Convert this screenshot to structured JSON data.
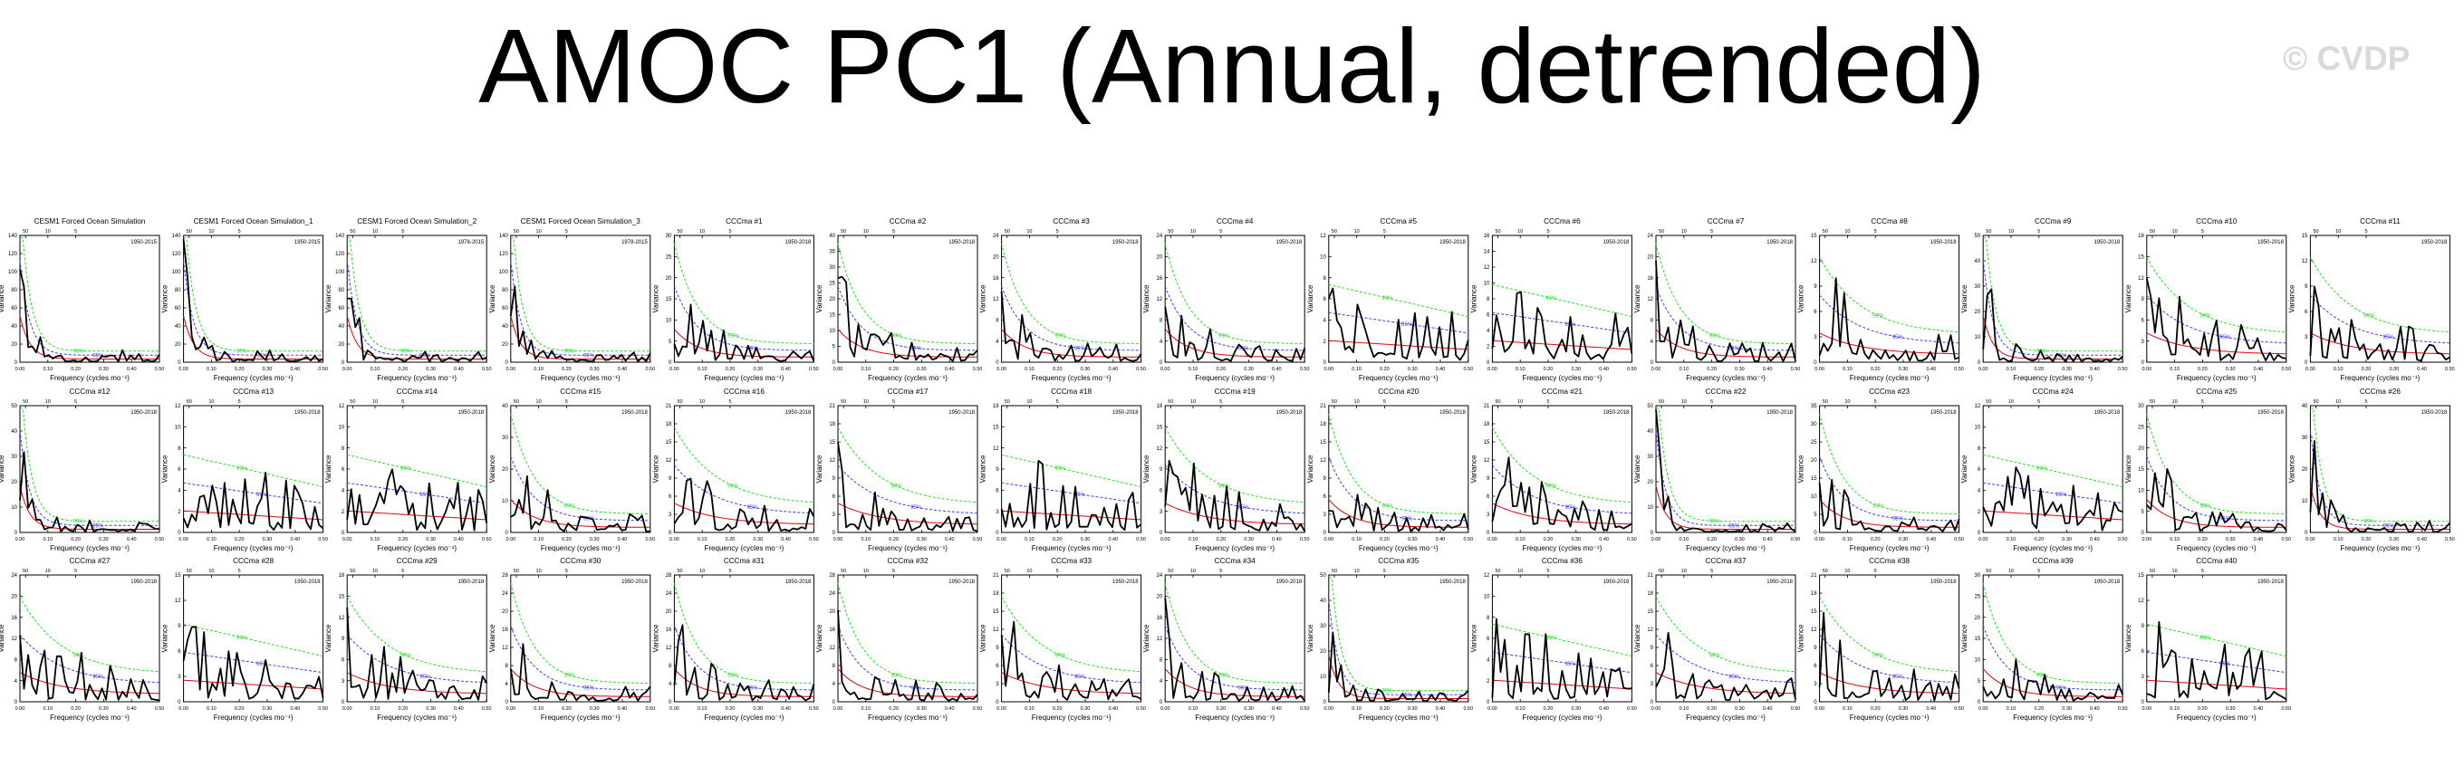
{
  "figure": {
    "title": "AMOC PC1 (Annual, detrended)",
    "watermark": "© CVDP",
    "colors": {
      "spectrum": "#000000",
      "red_noise": "#e8000b",
      "sig_95": "#3b3bff",
      "sig_99": "#22e022"
    }
  },
  "chart_data": {
    "type": "line",
    "description_series": [
      "power spectrum",
      "red noise",
      "95%",
      "99%"
    ],
    "xlabel": "Frequency (cycles mo⁻¹)",
    "ylabel": "Variance",
    "xlim": [
      0.0,
      0.5
    ],
    "x_ticks": [
      "0.00",
      "0.10",
      "0.20",
      "0.30",
      "0.40",
      "0.50"
    ],
    "top_ticks": [
      "50",
      "10",
      "5"
    ],
    "sig_labels": {
      "s95": "95%",
      "s99": "99%"
    },
    "panels": [
      {
        "title": "CESM1 Forced Ocean Simulation",
        "years": "1950-2015",
        "ymax": 140,
        "yticks": [
          "0",
          "20",
          "40",
          "60",
          "80",
          "100",
          "120",
          "140"
        ],
        "shape": "steep"
      },
      {
        "title": "CESM1 Forced Ocean Simulation_1",
        "years": "1950-2015",
        "ymax": 140,
        "yticks": [
          "0",
          "20",
          "40",
          "60",
          "80",
          "100",
          "120",
          "140"
        ],
        "shape": "steep"
      },
      {
        "title": "CESM1 Forced Ocean Simulation_2",
        "years": "1978-2015",
        "ymax": 140,
        "yticks": [
          "0",
          "20",
          "40",
          "60",
          "80",
          "100",
          "120",
          "140"
        ],
        "shape": "steep"
      },
      {
        "title": "CESM1 Forced Ocean Simulation_3",
        "years": "1978-2015",
        "ymax": 140,
        "yticks": [
          "0",
          "20",
          "40",
          "60",
          "80",
          "100",
          "120",
          "140"
        ],
        "shape": "steep"
      },
      {
        "title": "CCCma #1",
        "years": "1950-2018",
        "ymax": 30,
        "yticks": [
          "0",
          "5",
          "10",
          "15",
          "20",
          "25",
          "30"
        ],
        "shape": "red"
      },
      {
        "title": "CCCma #2",
        "years": "1950-2018",
        "ymax": 40,
        "yticks": [
          "0",
          "5",
          "10",
          "15",
          "20",
          "25",
          "30",
          "35",
          "40"
        ],
        "shape": "red"
      },
      {
        "title": "CCCma #3",
        "years": "1950-2018",
        "ymax": 24,
        "yticks": [
          "0",
          "4",
          "8",
          "12",
          "16",
          "20",
          "24"
        ],
        "shape": "red"
      },
      {
        "title": "CCCma #4",
        "years": "1950-2018",
        "ymax": 24,
        "yticks": [
          "0",
          "4",
          "8",
          "12",
          "16",
          "20",
          "24"
        ],
        "shape": "red"
      },
      {
        "title": "CCCma #5",
        "years": "1950-2018",
        "ymax": 12,
        "yticks": [
          "0",
          "2",
          "4",
          "6",
          "8",
          "10",
          "12"
        ],
        "shape": "white"
      },
      {
        "title": "CCCma #6",
        "years": "1950-2018",
        "ymax": 16,
        "yticks": [
          "0",
          "2",
          "4",
          "6",
          "8",
          "10",
          "12",
          "14",
          "16"
        ],
        "shape": "white"
      },
      {
        "title": "CCCma #7",
        "years": "1950-2018",
        "ymax": 24,
        "yticks": [
          "0",
          "4",
          "8",
          "12",
          "16",
          "20",
          "24"
        ],
        "shape": "red"
      },
      {
        "title": "CCCma #8",
        "years": "1950-2018",
        "ymax": 15,
        "yticks": [
          "0",
          "3",
          "6",
          "9",
          "12",
          "15"
        ],
        "shape": "mid"
      },
      {
        "title": "CCCma #9",
        "years": "1950-2018",
        "ymax": 50,
        "yticks": [
          "0",
          "10",
          "20",
          "30",
          "40",
          "50"
        ],
        "shape": "steep"
      },
      {
        "title": "CCCma #10",
        "years": "1950-2018",
        "ymax": 18,
        "yticks": [
          "0",
          "3",
          "6",
          "9",
          "12",
          "15",
          "18"
        ],
        "shape": "mid"
      },
      {
        "title": "CCCma #11",
        "years": "1950-2018",
        "ymax": 15,
        "yticks": [
          "0",
          "3",
          "6",
          "9",
          "12",
          "15"
        ],
        "shape": "mid"
      },
      {
        "title": "CCCma #12",
        "years": "1950-2018",
        "ymax": 50,
        "yticks": [
          "0",
          "10",
          "20",
          "30",
          "40",
          "50"
        ],
        "shape": "steep"
      },
      {
        "title": "CCCma #13",
        "years": "1950-2018",
        "ymax": 12,
        "yticks": [
          "0",
          "2",
          "4",
          "6",
          "8",
          "10",
          "12"
        ],
        "shape": "white"
      },
      {
        "title": "CCCma #14",
        "years": "1950-2018",
        "ymax": 12,
        "yticks": [
          "0",
          "2",
          "4",
          "6",
          "8",
          "10",
          "12"
        ],
        "shape": "white"
      },
      {
        "title": "CCCma #15",
        "years": "1950-2018",
        "ymax": 40,
        "yticks": [
          "0",
          "10",
          "20",
          "30",
          "40"
        ],
        "shape": "red"
      },
      {
        "title": "CCCma #16",
        "years": "1950-2018",
        "ymax": 21,
        "yticks": [
          "0",
          "3",
          "6",
          "9",
          "12",
          "15",
          "18",
          "21"
        ],
        "shape": "mid"
      },
      {
        "title": "CCCma #17",
        "years": "1950-2018",
        "ymax": 21,
        "yticks": [
          "0",
          "3",
          "6",
          "9",
          "12",
          "15",
          "18",
          "21"
        ],
        "shape": "mid"
      },
      {
        "title": "CCCma #18",
        "years": "1950-2018",
        "ymax": 18,
        "yticks": [
          "0",
          "3",
          "6",
          "9",
          "12",
          "15",
          "18"
        ],
        "shape": "white"
      },
      {
        "title": "CCCma #19",
        "years": "1950-2018",
        "ymax": 18,
        "yticks": [
          "0",
          "3",
          "6",
          "9",
          "12",
          "15",
          "18"
        ],
        "shape": "mid"
      },
      {
        "title": "CCCma #20",
        "years": "1950-2018",
        "ymax": 21,
        "yticks": [
          "0",
          "3",
          "6",
          "9",
          "12",
          "15",
          "18",
          "21"
        ],
        "shape": "red"
      },
      {
        "title": "CCCma #21",
        "years": "1950-2018",
        "ymax": 21,
        "yticks": [
          "0",
          "3",
          "6",
          "9",
          "12",
          "15",
          "18",
          "21"
        ],
        "shape": "mid"
      },
      {
        "title": "CCCma #22",
        "years": "1950-2018",
        "ymax": 50,
        "yticks": [
          "0",
          "10",
          "20",
          "30",
          "40",
          "50"
        ],
        "shape": "steep"
      },
      {
        "title": "CCCma #23",
        "years": "1950-2018",
        "ymax": 35,
        "yticks": [
          "0",
          "5",
          "10",
          "15",
          "20",
          "25",
          "30",
          "35"
        ],
        "shape": "red"
      },
      {
        "title": "CCCma #24",
        "years": "1950-2018",
        "ymax": 12,
        "yticks": [
          "0",
          "2",
          "4",
          "6",
          "8",
          "10",
          "12"
        ],
        "shape": "white"
      },
      {
        "title": "CCCma #25",
        "years": "1950-2018",
        "ymax": 30,
        "yticks": [
          "0",
          "5",
          "10",
          "15",
          "20",
          "25",
          "30"
        ],
        "shape": "red"
      },
      {
        "title": "CCCma #26",
        "years": "1950-2018",
        "ymax": 40,
        "yticks": [
          "0",
          "10",
          "20",
          "30",
          "40"
        ],
        "shape": "steep"
      },
      {
        "title": "CCCma #27",
        "years": "1950-2018",
        "ymax": 24,
        "yticks": [
          "0",
          "4",
          "8",
          "12",
          "16",
          "20",
          "24"
        ],
        "shape": "mid"
      },
      {
        "title": "CCCma #28",
        "years": "1950-2018",
        "ymax": 15,
        "yticks": [
          "0",
          "3",
          "6",
          "9",
          "12",
          "15"
        ],
        "shape": "white"
      },
      {
        "title": "CCCma #29",
        "years": "1950-2018",
        "ymax": 18,
        "yticks": [
          "0",
          "3",
          "6",
          "9",
          "12",
          "15",
          "18"
        ],
        "shape": "mid"
      },
      {
        "title": "CCCma #30",
        "years": "1950-2018",
        "ymax": 28,
        "yticks": [
          "0",
          "4",
          "8",
          "12",
          "16",
          "20",
          "24",
          "28"
        ],
        "shape": "red"
      },
      {
        "title": "CCCma #31",
        "years": "1950-2018",
        "ymax": 28,
        "yticks": [
          "0",
          "4",
          "8",
          "12",
          "16",
          "20",
          "24",
          "28"
        ],
        "shape": "red"
      },
      {
        "title": "CCCma #32",
        "years": "1950-2018",
        "ymax": 28,
        "yticks": [
          "0",
          "4",
          "8",
          "12",
          "16",
          "20",
          "24",
          "28"
        ],
        "shape": "red"
      },
      {
        "title": "CCCma #33",
        "years": "1950-2018",
        "ymax": 21,
        "yticks": [
          "0",
          "3",
          "6",
          "9",
          "12",
          "15",
          "18",
          "21"
        ],
        "shape": "mid"
      },
      {
        "title": "CCCma #34",
        "years": "1950-2018",
        "ymax": 24,
        "yticks": [
          "0",
          "4",
          "8",
          "12",
          "16",
          "20",
          "24"
        ],
        "shape": "red"
      },
      {
        "title": "CCCma #35",
        "years": "1950-2018",
        "ymax": 50,
        "yticks": [
          "0",
          "10",
          "20",
          "30",
          "40",
          "50"
        ],
        "shape": "steep"
      },
      {
        "title": "CCCma #36",
        "years": "1950-2018",
        "ymax": 12,
        "yticks": [
          "0",
          "2",
          "4",
          "6",
          "8",
          "10",
          "12"
        ],
        "shape": "white"
      },
      {
        "title": "CCCma #37",
        "years": "1950-2018",
        "ymax": 21,
        "yticks": [
          "0",
          "3",
          "6",
          "9",
          "12",
          "15",
          "18",
          "21"
        ],
        "shape": "mid"
      },
      {
        "title": "CCCma #38",
        "years": "1950-2018",
        "ymax": 21,
        "yticks": [
          "0",
          "3",
          "6",
          "9",
          "12",
          "15",
          "18",
          "21"
        ],
        "shape": "mid"
      },
      {
        "title": "CCCma #39",
        "years": "1950-2018",
        "ymax": 30,
        "yticks": [
          "0",
          "5",
          "10",
          "15",
          "20",
          "25",
          "30"
        ],
        "shape": "red"
      },
      {
        "title": "CCCma #40",
        "years": "1950-2018",
        "ymax": 15,
        "yticks": [
          "0",
          "3",
          "6",
          "9",
          "12",
          "15"
        ],
        "shape": "white"
      }
    ]
  }
}
